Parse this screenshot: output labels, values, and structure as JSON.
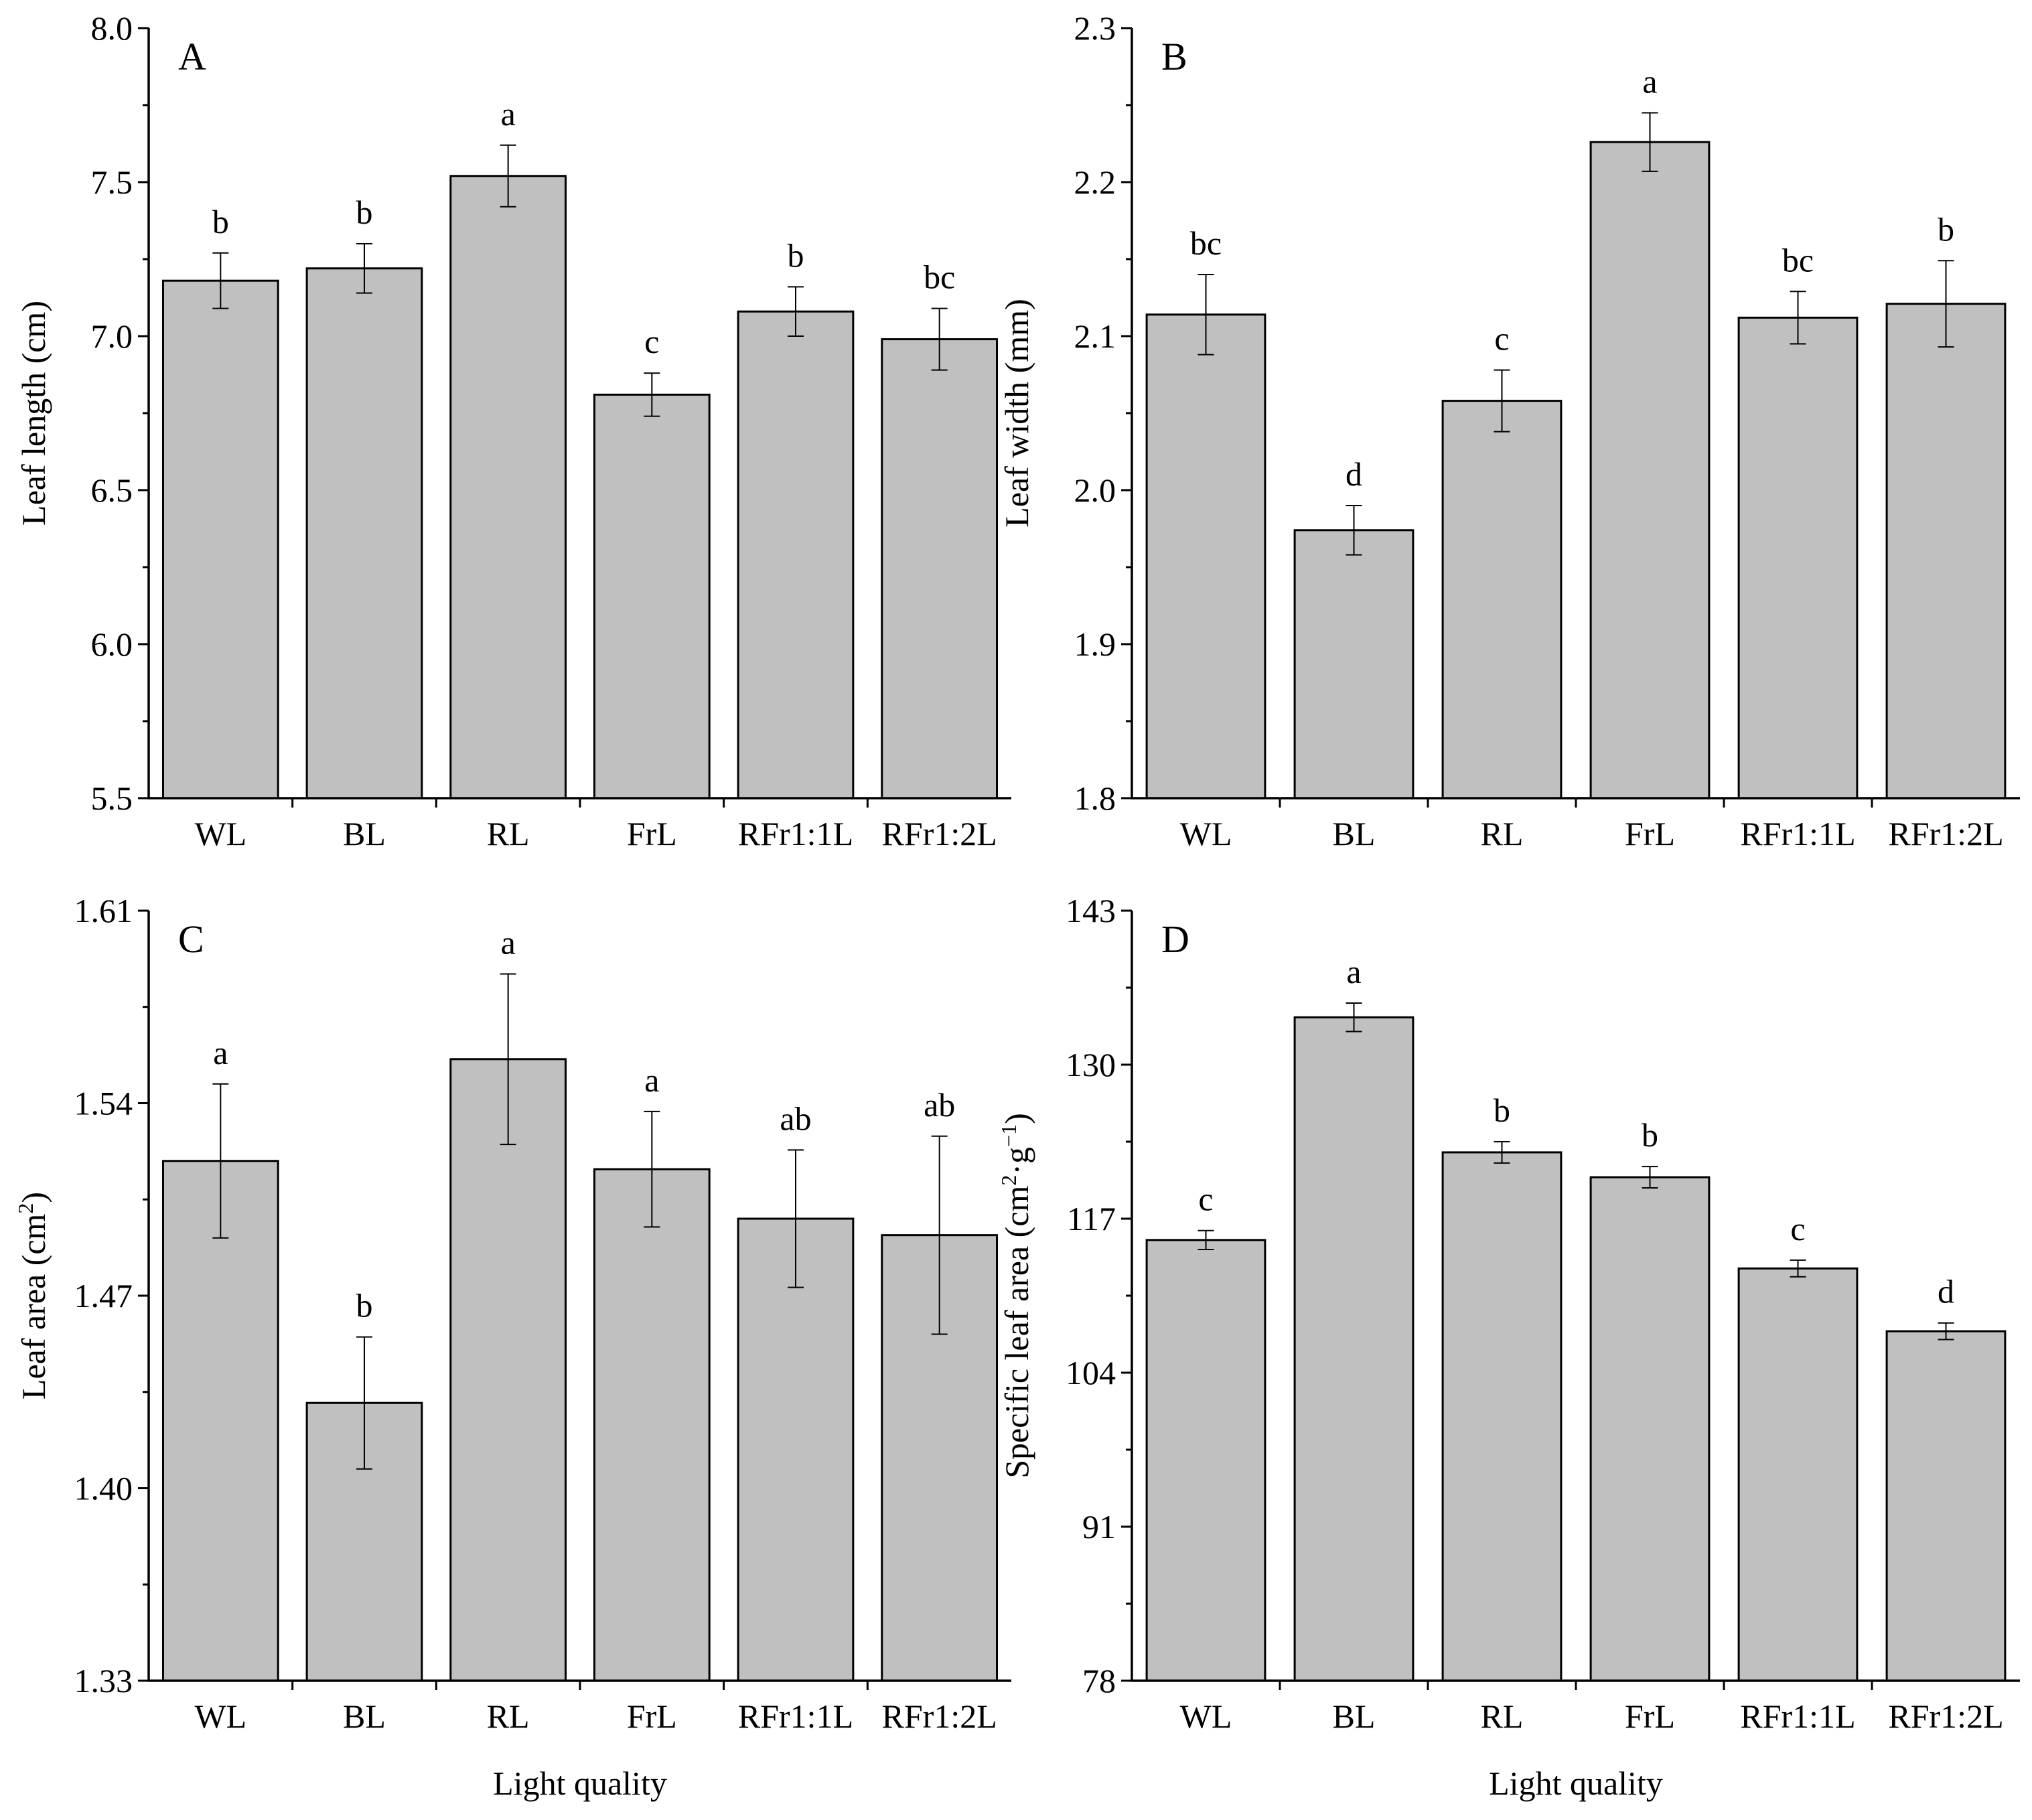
{
  "figure": {
    "x_axis_label": "Light quality"
  },
  "chart_data": [
    {
      "type": "bar",
      "panel": "A",
      "categories": [
        "WL",
        "BL",
        "RL",
        "FrL",
        "RFr1:1L",
        "RFr1:2L"
      ],
      "values": [
        7.18,
        7.22,
        7.52,
        6.81,
        7.08,
        6.99
      ],
      "errors": [
        0.09,
        0.08,
        0.1,
        0.07,
        0.08,
        0.1
      ],
      "letters": [
        "b",
        "b",
        "a",
        "c",
        "b",
        "bc"
      ],
      "ylabel": "Leaf length (cm)",
      "ylabel_sup": "",
      "ylabel_suffix": "",
      "xlabel": "",
      "ylim": [
        5.5,
        8.0
      ],
      "yticks": [
        "5.5",
        "6.0",
        "6.5",
        "7.0",
        "7.5",
        "8.0"
      ]
    },
    {
      "type": "bar",
      "panel": "B",
      "categories": [
        "WL",
        "BL",
        "RL",
        "FrL",
        "RFr1:1L",
        "RFr1:2L"
      ],
      "values": [
        2.114,
        1.974,
        2.058,
        2.226,
        2.112,
        2.121
      ],
      "errors": [
        0.026,
        0.016,
        0.02,
        0.019,
        0.017,
        0.028
      ],
      "letters": [
        "bc",
        "d",
        "c",
        "a",
        "bc",
        "b"
      ],
      "ylabel": "Leaf width (mm)",
      "ylabel_sup": "",
      "ylabel_suffix": "",
      "xlabel": "",
      "ylim": [
        1.8,
        2.3
      ],
      "yticks": [
        "1.8",
        "1.9",
        "2.0",
        "2.1",
        "2.2",
        "2.3"
      ]
    },
    {
      "type": "bar",
      "panel": "C",
      "categories": [
        "WL",
        "BL",
        "RL",
        "FrL",
        "RFr1:1L",
        "RFr1:2L"
      ],
      "values": [
        1.519,
        1.431,
        1.556,
        1.516,
        1.498,
        1.492
      ],
      "errors": [
        0.028,
        0.024,
        0.031,
        0.021,
        0.025,
        0.036
      ],
      "letters": [
        "a",
        "b",
        "a",
        "a",
        "ab",
        "ab"
      ],
      "ylabel": "Leaf area (cm",
      "ylabel_sup": "2",
      "ylabel_suffix": ")",
      "xlabel": "Light quality",
      "ylim": [
        1.33,
        1.61
      ],
      "yticks": [
        "1.33",
        "1.40",
        "1.47",
        "1.54",
        "1.61"
      ]
    },
    {
      "type": "bar",
      "panel": "D",
      "categories": [
        "WL",
        "BL",
        "RL",
        "FrL",
        "RFr1:1L",
        "RFr1:2L"
      ],
      "values": [
        115.2,
        134.0,
        122.6,
        120.5,
        112.8,
        107.5
      ],
      "errors": [
        0.8,
        1.2,
        0.9,
        0.9,
        0.7,
        0.7
      ],
      "letters": [
        "c",
        "a",
        "b",
        "b",
        "c",
        "d"
      ],
      "ylabel": "Specific leaf area (cm",
      "ylabel_sup": "2",
      "ylabel_mid": "·g",
      "ylabel_sup2": "−1",
      "ylabel_suffix": ")",
      "xlabel": "Light quality",
      "ylim": [
        78,
        143
      ],
      "yticks": [
        "78",
        "91",
        "104",
        "117",
        "130",
        "143"
      ]
    }
  ]
}
